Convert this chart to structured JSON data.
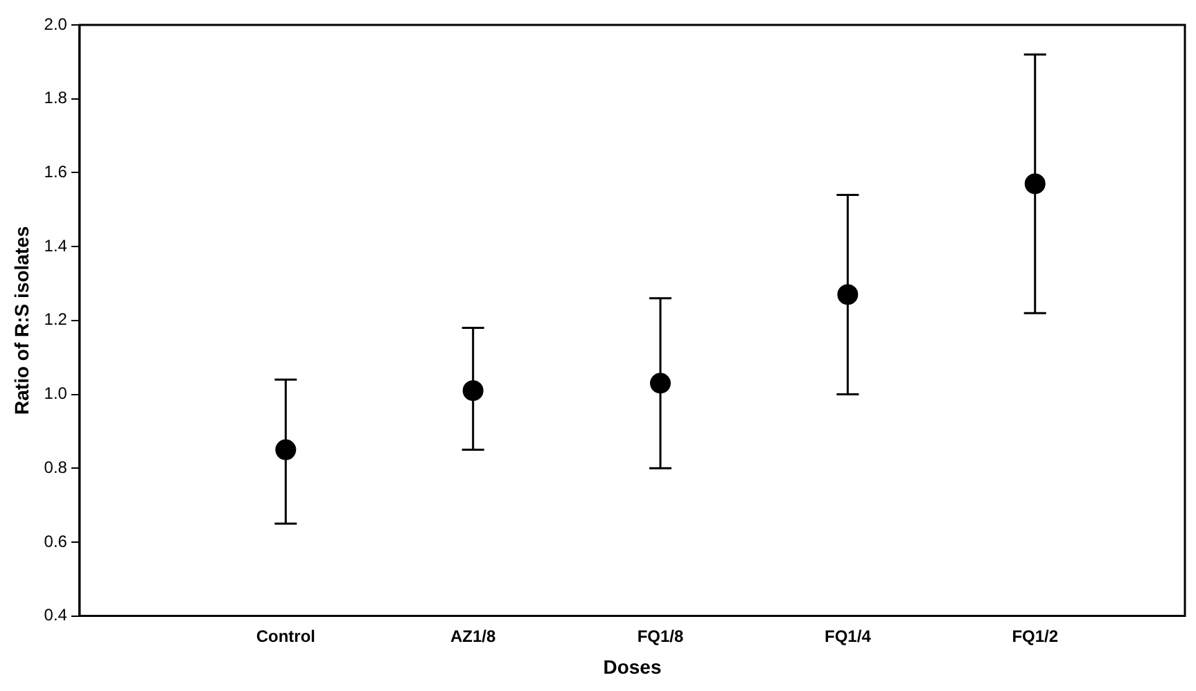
{
  "chart_data": {
    "type": "scatter",
    "xlabel": "Doses",
    "ylabel": "Ratio of R:S isolates",
    "categories": [
      "Control",
      "AZ1/8",
      "FQ1/8",
      "FQ1/4",
      "FQ1/2"
    ],
    "values": [
      0.85,
      1.01,
      1.03,
      1.27,
      1.57
    ],
    "errors": [
      [
        0.65,
        1.04
      ],
      [
        0.85,
        1.18
      ],
      [
        0.8,
        1.26
      ],
      [
        1.0,
        1.54
      ],
      [
        1.22,
        1.92
      ]
    ],
    "color": "#000000",
    "marker": "circle",
    "grid": false,
    "legend": false,
    "ylim": [
      0.4,
      2.0
    ],
    "yticks": [
      {
        "value": 0.4,
        "label": "0.4"
      },
      {
        "value": 0.6,
        "label": "0.6"
      },
      {
        "value": 0.8,
        "label": "0.8"
      },
      {
        "value": 1.0,
        "label": "1.0"
      },
      {
        "value": 1.2,
        "label": "1.2"
      },
      {
        "value": 1.4,
        "label": "1.4"
      },
      {
        "value": 1.6,
        "label": "1.6"
      },
      {
        "value": 1.8,
        "label": "1.8"
      },
      {
        "value": 2.0,
        "label": "2.0"
      }
    ]
  }
}
